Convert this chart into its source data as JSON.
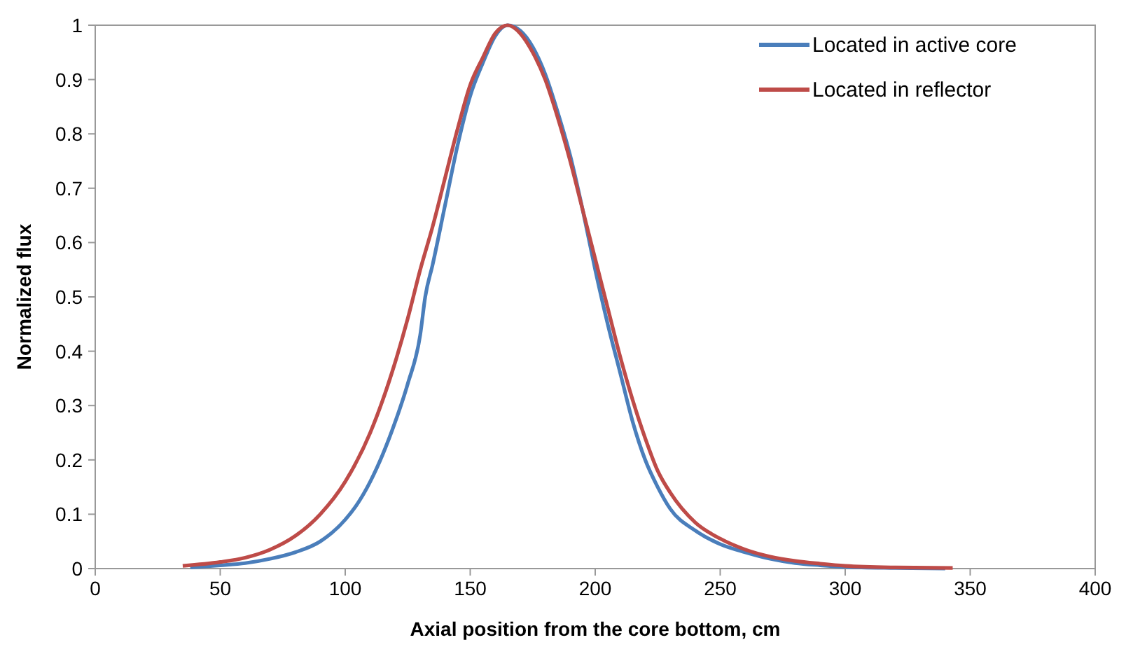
{
  "chart_data": {
    "type": "line",
    "xlabel": "Axial position from the core bottom, cm",
    "ylabel": "Normalized flux",
    "xlim": [
      0,
      400
    ],
    "xticks": [
      0,
      50,
      100,
      150,
      200,
      250,
      300,
      350,
      400
    ],
    "ylim": [
      0,
      1
    ],
    "yticks": [
      0,
      0.1,
      0.2,
      0.3,
      0.4,
      0.5,
      0.6,
      0.7,
      0.8,
      0.9,
      1
    ],
    "grid": false,
    "legend": "top right",
    "marker": "none",
    "line_style": "solid",
    "series": [
      {
        "name": "Located in active core",
        "color": "#4a7ebb",
        "x": [
          38,
          50,
          60,
          70,
          80,
          90,
          100,
          105,
          110,
          115,
          120,
          125,
          130,
          132,
          135,
          140,
          145,
          150,
          155,
          160,
          165,
          170,
          175,
          180,
          185,
          190,
          195,
          200,
          205,
          210,
          215,
          220,
          225,
          230,
          240,
          250,
          260,
          270,
          280,
          290,
          300,
          320,
          340
        ],
        "values": [
          0.002,
          0.006,
          0.01,
          0.018,
          0.03,
          0.05,
          0.09,
          0.12,
          0.16,
          0.21,
          0.27,
          0.34,
          0.43,
          0.5,
          0.56,
          0.67,
          0.78,
          0.87,
          0.93,
          0.98,
          1.0,
          0.99,
          0.96,
          0.91,
          0.84,
          0.76,
          0.66,
          0.55,
          0.45,
          0.36,
          0.27,
          0.2,
          0.15,
          0.11,
          0.07,
          0.045,
          0.03,
          0.018,
          0.01,
          0.006,
          0.003,
          0.001,
          0.0
        ]
      },
      {
        "name": "Located in reflector",
        "color": "#be4b48",
        "x": [
          35,
          50,
          60,
          70,
          80,
          90,
          100,
          110,
          115,
          120,
          125,
          130,
          135,
          140,
          145,
          150,
          155,
          160,
          165,
          170,
          175,
          180,
          185,
          190,
          195,
          200,
          205,
          210,
          215,
          220,
          225,
          230,
          240,
          250,
          260,
          270,
          280,
          290,
          300,
          320,
          343
        ],
        "values": [
          0.005,
          0.012,
          0.02,
          0.035,
          0.06,
          0.1,
          0.16,
          0.25,
          0.31,
          0.38,
          0.46,
          0.55,
          0.63,
          0.72,
          0.81,
          0.89,
          0.94,
          0.985,
          1.0,
          0.985,
          0.95,
          0.9,
          0.83,
          0.75,
          0.66,
          0.57,
          0.48,
          0.39,
          0.31,
          0.24,
          0.18,
          0.14,
          0.085,
          0.055,
          0.035,
          0.022,
          0.014,
          0.009,
          0.005,
          0.002,
          0.001
        ]
      }
    ]
  }
}
